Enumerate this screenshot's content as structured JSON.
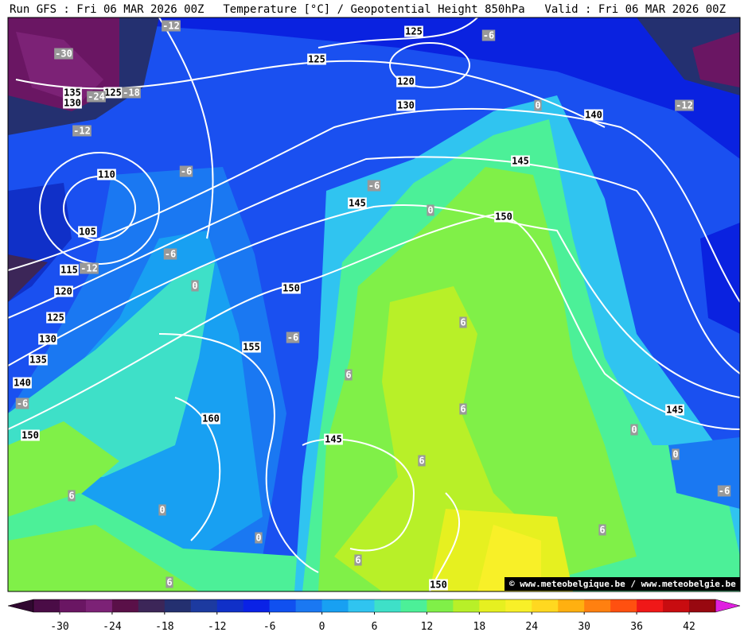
{
  "header": {
    "left": "Run GFS : Fri 06 MAR 2026 00Z",
    "center": "Temperature [°C] / Geopotential Height 850hPa",
    "right": "Valid : Fri 06 MAR 2026 00Z"
  },
  "credit": "© www.meteobelgique.be / www.meteobelgie.be",
  "height_labels": [
    "125",
    "125",
    "120",
    "130",
    "140",
    "145",
    "110",
    "145",
    "150",
    "105",
    "115",
    "120",
    "150",
    "125",
    "130",
    "155",
    "135",
    "140",
    "145",
    "160",
    "150",
    "145",
    "150",
    "135",
    "130",
    "125"
  ],
  "temperature_labels": [
    "-12",
    "-6",
    "-30",
    "-24",
    "-18",
    "0",
    "-12",
    "-12",
    "-6",
    "-6",
    "0",
    "-6",
    "-12",
    "0",
    "-6",
    "6",
    "6",
    "-6",
    "6",
    "0",
    "0",
    "6",
    "-6",
    "6",
    "0",
    "6",
    "0",
    "6",
    "6"
  ],
  "colorbar": {
    "ticks": [
      -30,
      -24,
      -18,
      -12,
      -6,
      0,
      6,
      12,
      18,
      24,
      30,
      36,
      42
    ],
    "colors": [
      "#4a0c46",
      "#6a1663",
      "#7c2276",
      "#5a1048",
      "#3c2658",
      "#243070",
      "#1c3aa0",
      "#1030c8",
      "#0a22e6",
      "#1050f0",
      "#1a78f2",
      "#18a0f2",
      "#30c4f0",
      "#3ee0c8",
      "#4cf098",
      "#80f048",
      "#b8f028",
      "#e6f020",
      "#f8f028",
      "#ffd820",
      "#ffb010",
      "#ff8010",
      "#ff5010",
      "#f01818",
      "#c80c10",
      "#980810"
    ]
  }
}
